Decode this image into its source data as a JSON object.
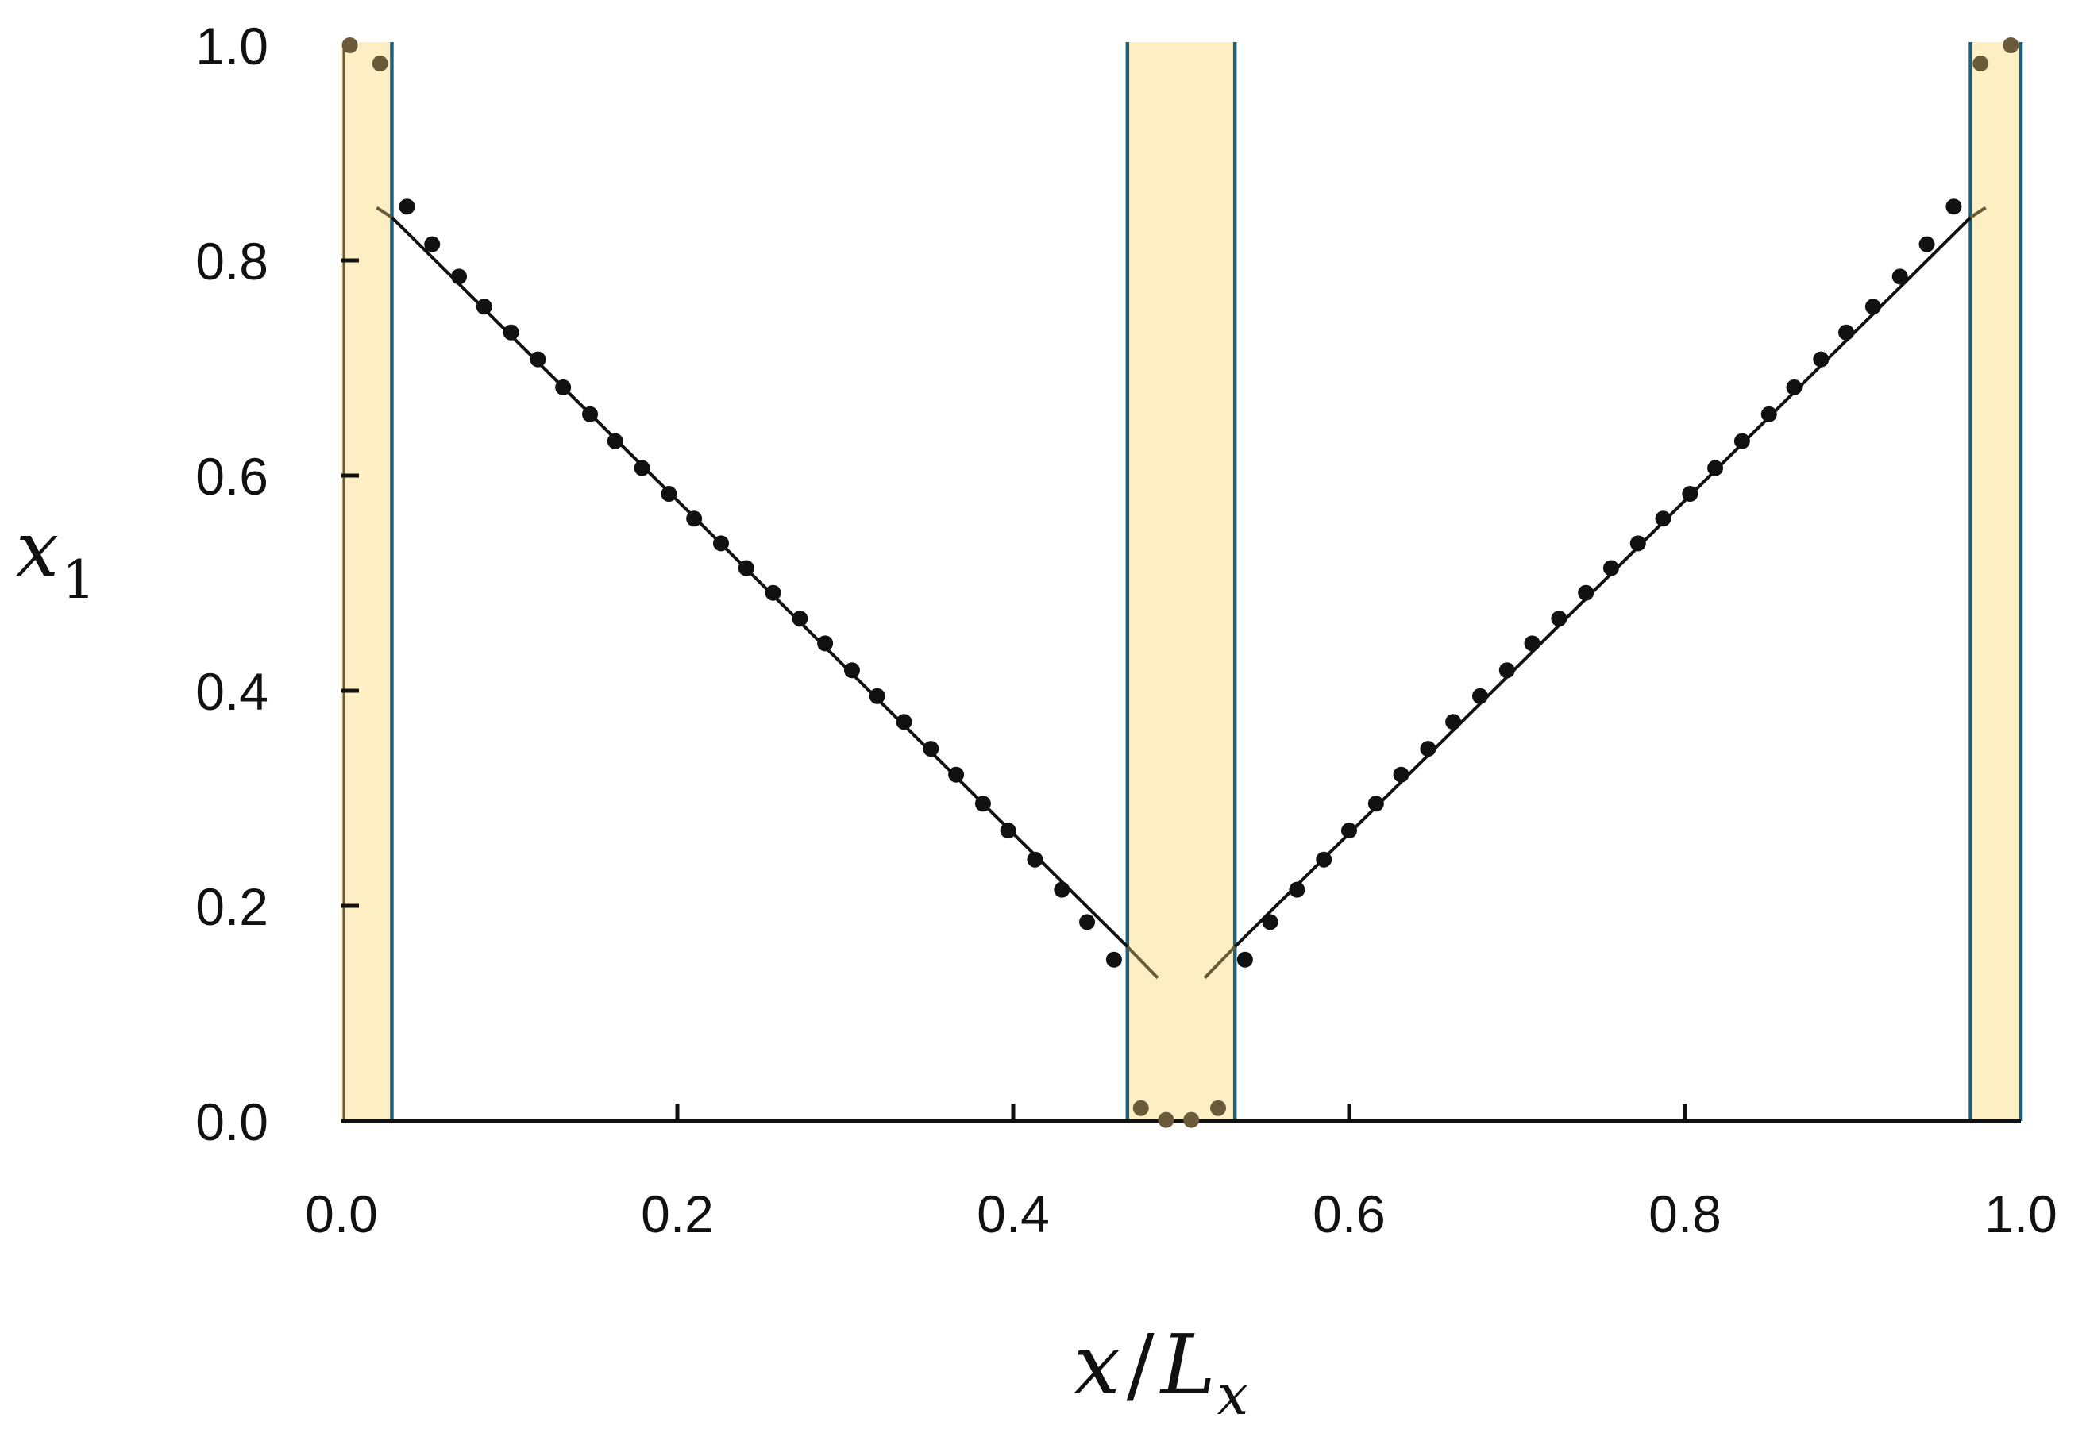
{
  "chart_data": {
    "type": "scatter",
    "title": "",
    "xlabel": "x/L_x",
    "xlabel_parts": {
      "main": "x",
      "slash": "/",
      "symbol": "L",
      "subscript": "x"
    },
    "ylabel": "x_1",
    "ylabel_parts": {
      "main": "x",
      "subscript": "1"
    },
    "xlim": [
      0.0,
      1.0
    ],
    "ylim": [
      0.0,
      1.0
    ],
    "x_ticks": [
      0.0,
      0.2,
      0.4,
      0.6,
      0.8,
      1.0
    ],
    "x_tick_labels": [
      "0.0",
      "0.2",
      "0.4",
      "0.6",
      "0.8",
      "1.0"
    ],
    "y_ticks": [
      0.0,
      0.2,
      0.4,
      0.6,
      0.8,
      1.0
    ],
    "y_tick_labels": [
      "0.0",
      "0.2",
      "0.4",
      "0.6",
      "0.8",
      "1.0"
    ],
    "grid": false,
    "colors": {
      "band_fill": "#fdefc3",
      "band_edge": "#1f5f7a",
      "points": "#111111",
      "points_in_band": "#6b5a3a",
      "fit_line": "#111111",
      "fit_line_in_band": "#6b5a3a"
    },
    "shaded_bands": [
      {
        "x_from": 0.0,
        "x_to": 0.03
      },
      {
        "x_from": 0.468,
        "x_to": 0.532
      },
      {
        "x_from": 0.97,
        "x_to": 1.0
      }
    ],
    "fit_lines": [
      {
        "x": [
          0.021,
          0.03,
          0.468,
          0.486
        ],
        "y": [
          0.849,
          0.84,
          0.162,
          0.133
        ]
      },
      {
        "x": [
          0.514,
          0.532,
          0.97,
          0.979
        ],
        "y": [
          0.133,
          0.162,
          0.84,
          0.849
        ]
      }
    ],
    "series": [
      {
        "marker": "dot",
        "x": [
          0.005,
          0.023,
          0.039,
          0.054,
          0.07,
          0.085,
          0.101,
          0.117,
          0.132,
          0.148,
          0.163,
          0.179,
          0.195,
          0.21,
          0.226,
          0.241,
          0.257,
          0.273,
          0.288,
          0.304,
          0.319,
          0.335,
          0.351,
          0.366,
          0.382,
          0.397,
          0.413,
          0.429,
          0.444,
          0.46,
          0.476,
          0.491,
          0.506,
          0.522,
          0.538,
          0.553,
          0.569,
          0.585,
          0.6,
          0.616,
          0.631,
          0.647,
          0.662,
          0.678,
          0.694,
          0.709,
          0.725,
          0.741,
          0.756,
          0.772,
          0.787,
          0.803,
          0.818,
          0.834,
          0.85,
          0.865,
          0.881,
          0.896,
          0.912,
          0.928,
          0.944,
          0.96,
          0.976,
          0.994
        ],
        "y": [
          1.0,
          0.983,
          0.85,
          0.815,
          0.785,
          0.757,
          0.733,
          0.708,
          0.682,
          0.657,
          0.632,
          0.607,
          0.583,
          0.56,
          0.537,
          0.514,
          0.491,
          0.467,
          0.444,
          0.419,
          0.395,
          0.371,
          0.346,
          0.322,
          0.295,
          0.27,
          0.243,
          0.215,
          0.185,
          0.15,
          0.012,
          0.001,
          0.001,
          0.012,
          0.15,
          0.185,
          0.215,
          0.243,
          0.27,
          0.295,
          0.322,
          0.346,
          0.371,
          0.395,
          0.419,
          0.444,
          0.467,
          0.491,
          0.514,
          0.537,
          0.56,
          0.583,
          0.607,
          0.632,
          0.657,
          0.682,
          0.708,
          0.733,
          0.757,
          0.785,
          0.815,
          0.85,
          0.983,
          1.0
        ]
      }
    ]
  }
}
